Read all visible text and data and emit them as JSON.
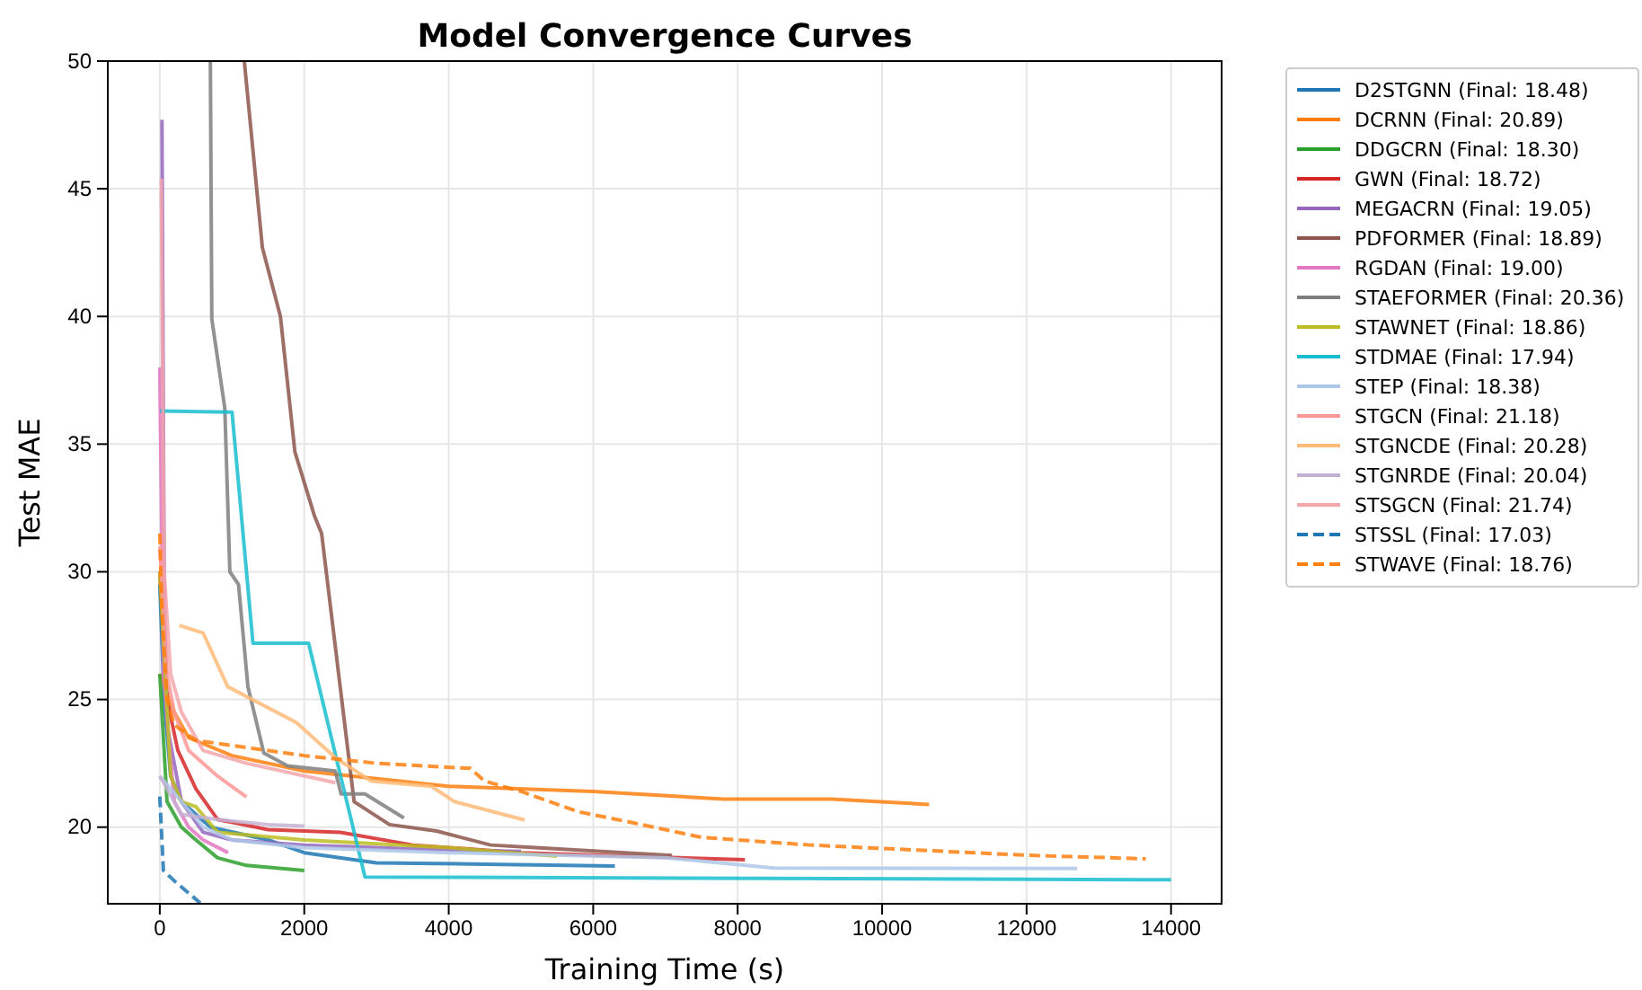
{
  "chart_data": {
    "type": "line",
    "title": "Model Convergence Curves",
    "xlabel": "Training Time (s)",
    "ylabel": "Test MAE",
    "xlim": [
      -720,
      14700
    ],
    "xticks": [
      0,
      2000,
      4000,
      6000,
      8000,
      10000,
      12000,
      14000
    ],
    "ylim": [
      17.0,
      50
    ],
    "yticks": [
      20,
      25,
      30,
      35,
      40,
      45,
      50
    ],
    "grid": true,
    "legend": "right",
    "line_style": "solid",
    "series": [
      {
        "name": "D2STGNN (Final: 18.48)",
        "color": "#1f77b4",
        "x": [
          0,
          60,
          150,
          300,
          700,
          1500,
          2000,
          3000,
          4500,
          6300
        ],
        "values": [
          29.5,
          25,
          22,
          21,
          20,
          19.5,
          19,
          18.6,
          18.55,
          18.48
        ]
      },
      {
        "name": "DCRNN (Final: 20.89)",
        "color": "#ff7f0e",
        "x": [
          0,
          200,
          400,
          1000,
          2000,
          4000,
          6000,
          7800,
          9300,
          10650
        ],
        "values": [
          26,
          24.5,
          23.5,
          22.8,
          22.2,
          21.6,
          21.4,
          21.1,
          21.1,
          20.89
        ]
      },
      {
        "name": "DDGCRN (Final: 18.30)",
        "color": "#2ca02c",
        "x": [
          0,
          100,
          300,
          500,
          800,
          1200,
          2000
        ],
        "values": [
          26,
          21,
          20,
          19.5,
          18.8,
          18.5,
          18.3
        ]
      },
      {
        "name": "GWN (Final: 18.72)",
        "color": "#d62728",
        "x": [
          0,
          100,
          250,
          500,
          800,
          1500,
          2500,
          3500,
          5000,
          8100
        ],
        "values": [
          30,
          25,
          23,
          21.5,
          20.3,
          19.9,
          19.8,
          19.3,
          19.0,
          18.72
        ]
      },
      {
        "name": "MEGACRN (Final: 19.05)",
        "color": "#9467bd",
        "x": [
          30,
          60,
          100,
          300,
          600,
          1000,
          2000,
          4000,
          5000
        ],
        "values": [
          47.7,
          30,
          24,
          21,
          19.8,
          19.5,
          19.3,
          19.1,
          19.05
        ]
      },
      {
        "name": "PDFORMER (Final: 18.89)",
        "color": "#8c564b",
        "x": [
          1170,
          1420,
          1670,
          1870,
          2140,
          2240,
          2690,
          3180,
          3830,
          4580,
          5200,
          7090
        ],
        "values": [
          50,
          42.7,
          40,
          34.7,
          32.2,
          31.5,
          21,
          20.1,
          19.85,
          19.3,
          19.2,
          18.89
        ]
      },
      {
        "name": "RGDAN (Final: 19.00)",
        "color": "#e377c2",
        "x": [
          0,
          50,
          200,
          400,
          600,
          945
        ],
        "values": [
          38,
          26,
          21,
          20,
          19.5,
          19.0
        ]
      },
      {
        "name": "STAEFORMER (Final: 20.36)",
        "color": "#7f7f7f",
        "x": [
          700,
          720,
          900,
          970,
          1090,
          1220,
          1440,
          1770,
          2430,
          2510,
          2840,
          3380
        ],
        "values": [
          50,
          39.9,
          36.4,
          30,
          29.5,
          25.5,
          22.9,
          22.4,
          22.2,
          21.3,
          21.3,
          20.36
        ]
      },
      {
        "name": "STAWNET (Final: 18.86)",
        "color": "#bcbd22",
        "x": [
          0,
          150,
          300,
          500,
          800,
          2000,
          4000,
          5500
        ],
        "values": [
          30,
          22,
          21,
          20.8,
          19.8,
          19.5,
          19.2,
          18.86
        ]
      },
      {
        "name": "STDMAE (Final: 17.94)",
        "color": "#17becf",
        "x": [
          0,
          1000,
          1290,
          2060,
          2840,
          14000
        ],
        "values": [
          36.3,
          36.25,
          27.2,
          27.2,
          18.05,
          17.94
        ]
      },
      {
        "name": "STEP (Final: 18.38)",
        "color": "#aec7e8",
        "x": [
          0,
          300,
          600,
          1000,
          2000,
          4000,
          7000,
          8500,
          12700
        ],
        "values": [
          22,
          21,
          20,
          19.5,
          19.2,
          19,
          18.8,
          18.4,
          18.38
        ]
      },
      {
        "name": "STGCN (Final: 21.18)",
        "color": "#ff9896",
        "x": [
          0,
          100,
          200,
          400,
          800,
          1200
        ],
        "values": [
          31,
          26,
          24.5,
          23,
          22,
          21.18
        ]
      },
      {
        "name": "STGNCDE (Final: 20.28)",
        "color": "#ffbb78",
        "x": [
          270,
          600,
          940,
          1890,
          2440,
          2930,
          3760,
          4080,
          5050
        ],
        "values": [
          27.9,
          27.6,
          25.5,
          24.1,
          22.7,
          21.8,
          21.6,
          21.0,
          20.28
        ]
      },
      {
        "name": "STGNRDE (Final: 20.04)",
        "color": "#c5b0d5",
        "x": [
          0,
          300,
          800,
          1500,
          2000
        ],
        "values": [
          22,
          20.5,
          20.3,
          20.1,
          20.04
        ]
      },
      {
        "name": "STSGCN (Final: 21.74)",
        "color": "#f4a6ac",
        "x": [
          20,
          60,
          150,
          300,
          600,
          1200,
          2430
        ],
        "values": [
          45.4,
          30,
          26,
          24.5,
          23,
          22.5,
          21.74
        ]
      },
      {
        "name": "STSSL (Final: 17.03)",
        "color": "#1f77b4",
        "line_style": "dashed",
        "x": [
          0,
          50,
          200,
          560
        ],
        "values": [
          21.2,
          18.3,
          17.9,
          17.03
        ]
      },
      {
        "name": "STWAVE (Final: 18.76)",
        "color": "#ff7f0e",
        "line_style": "dashed",
        "x": [
          0,
          30,
          100,
          200,
          500,
          1000,
          2000,
          3000,
          4300,
          4500,
          5000,
          5800,
          6500,
          7500,
          9000,
          10500,
          12000,
          13650
        ],
        "values": [
          31.5,
          28.5,
          25,
          24,
          23.4,
          23.2,
          22.8,
          22.5,
          22.3,
          21.8,
          21.4,
          20.6,
          20.2,
          19.6,
          19.3,
          19.1,
          18.9,
          18.76
        ]
      }
    ]
  }
}
